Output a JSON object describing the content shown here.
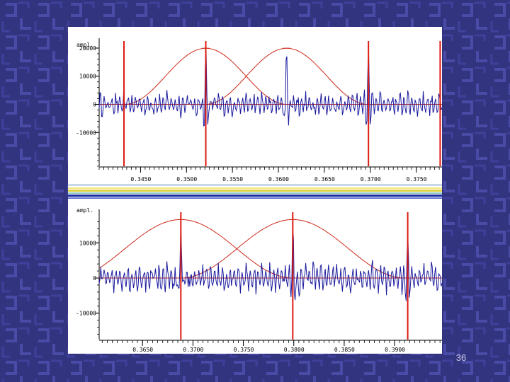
{
  "slide": {
    "page_number": "36",
    "colors": {
      "background": "#33347f",
      "pattern": "#4848a0",
      "signal": "#1a1a9e",
      "window": "#cc2a1a",
      "marker": "#dd1a10"
    }
  },
  "chart_data": [
    {
      "type": "line",
      "xlim": [
        0.3405,
        0.3778
      ],
      "ylim": [
        -22000,
        21000
      ],
      "x_ticks": [
        0.345,
        0.35,
        0.355,
        0.36,
        0.365,
        0.37,
        0.375
      ],
      "x_tick_labels": [
        "0.3450",
        "0.3500",
        "0.3550",
        "0.3600",
        "0.3650",
        "0.3700",
        "0.3750"
      ],
      "y_ticks": [
        20000,
        10000,
        0,
        -10000
      ],
      "y_tick_labels": [
        "20000",
        "10000",
        "0",
        "-10000"
      ],
      "ylabel": "ampl.",
      "markers_x": [
        0.3432,
        0.3521,
        0.3698,
        0.3776
      ],
      "window_peaks_x": [
        0.3521,
        0.3609
      ],
      "signal_peaks": [
        {
          "x": 0.3521,
          "y": 19000
        },
        {
          "x": 0.3609,
          "y": 20000
        },
        {
          "x": 0.3698,
          "y": 18000
        }
      ]
    },
    {
      "type": "line",
      "xlim": [
        0.3607,
        0.3947
      ],
      "ylim": [
        -17500,
        17500
      ],
      "x_ticks": [
        0.36,
        0.365,
        0.37,
        0.375,
        0.38,
        0.385,
        0.39
      ],
      "x_tick_labels": [
        "0.3600",
        "0.3650",
        "0.3700",
        "0.3750",
        "0.3800",
        "0.3850",
        "0.3900"
      ],
      "y_ticks": [
        10000,
        0,
        -10000
      ],
      "y_tick_labels": [
        "10000",
        "0",
        "-10000"
      ],
      "ylabel": "ampl.",
      "markers_x": [
        0.3688,
        0.3799,
        0.3913
      ],
      "window_peaks_x": [
        0.3688,
        0.3799
      ],
      "signal_peaks": [
        {
          "x": 0.3688,
          "y": 16000
        },
        {
          "x": 0.3799,
          "y": 16000
        },
        {
          "x": 0.3913,
          "y": 13000
        }
      ]
    }
  ]
}
